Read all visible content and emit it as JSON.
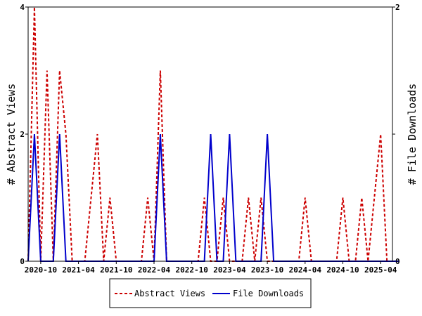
{
  "chart_data": {
    "type": "line",
    "x_tick_labels": [
      "2020-10",
      "2021-04",
      "2021-10",
      "2022-04",
      "2022-10",
      "2023-04",
      "2023-10",
      "2024-04",
      "2024-10",
      "2025-04"
    ],
    "y_left": {
      "label": "# Abstract Views",
      "ylim": [
        0,
        4
      ],
      "ticks": [
        "0",
        "2",
        "4"
      ]
    },
    "y_right": {
      "label": "# File Downloads",
      "ylim": [
        0,
        2
      ],
      "ticks": [
        "0",
        "1",
        "2"
      ]
    },
    "x": [
      "2020-08",
      "2020-09",
      "2020-10",
      "2020-11",
      "2020-12",
      "2021-01",
      "2021-02",
      "2021-03",
      "2021-04",
      "2021-05",
      "2021-06",
      "2021-07",
      "2021-08",
      "2021-09",
      "2021-10",
      "2021-11",
      "2021-12",
      "2022-01",
      "2022-02",
      "2022-03",
      "2022-04",
      "2022-05",
      "2022-06",
      "2022-07",
      "2022-08",
      "2022-09",
      "2022-10",
      "2022-11",
      "2022-12",
      "2023-01",
      "2023-02",
      "2023-03",
      "2023-04",
      "2023-05",
      "2023-06",
      "2023-07",
      "2023-08",
      "2023-09",
      "2023-10",
      "2023-11",
      "2023-12",
      "2024-01",
      "2024-02",
      "2024-03",
      "2024-04",
      "2024-05",
      "2024-06",
      "2024-07",
      "2024-08",
      "2024-09",
      "2024-10",
      "2024-11",
      "2024-12",
      "2025-01",
      "2025-02",
      "2025-03",
      "2025-04",
      "2025-05",
      "2025-06",
      "2025-07"
    ],
    "series": [
      {
        "name": "Abstract Views",
        "axis": "left",
        "color": "#cc0000",
        "dash": "dashed",
        "values": [
          0,
          4,
          0,
          3,
          0,
          3,
          2,
          0,
          0,
          0,
          1,
          2,
          0,
          1,
          0,
          0,
          0,
          0,
          0,
          1,
          0,
          3,
          0,
          0,
          0,
          0,
          0,
          0,
          1,
          0,
          0,
          1,
          0,
          0,
          0,
          1,
          0,
          1,
          0,
          0,
          0,
          0,
          0,
          0,
          1,
          0,
          0,
          0,
          0,
          0,
          1,
          0,
          0,
          1,
          0,
          1,
          2,
          0,
          0,
          0
        ]
      },
      {
        "name": "File Downloads",
        "axis": "right",
        "color": "#0000cc",
        "dash": "solid",
        "values": [
          0,
          1,
          0,
          0,
          0,
          1,
          0,
          0,
          0,
          0,
          0,
          0,
          0,
          0,
          0,
          0,
          0,
          0,
          0,
          0,
          0,
          1,
          0,
          0,
          0,
          0,
          0,
          0,
          0,
          1,
          0,
          0,
          1,
          0,
          0,
          0,
          0,
          0,
          1,
          0,
          0,
          0,
          0,
          0,
          0,
          0,
          0,
          0,
          0,
          0,
          0,
          0,
          0,
          0,
          0,
          0,
          0,
          0,
          0,
          0
        ]
      }
    ],
    "legend": {
      "position": "bottom-center",
      "entries": [
        "Abstract Views",
        "File Downloads"
      ]
    },
    "grid": false
  }
}
